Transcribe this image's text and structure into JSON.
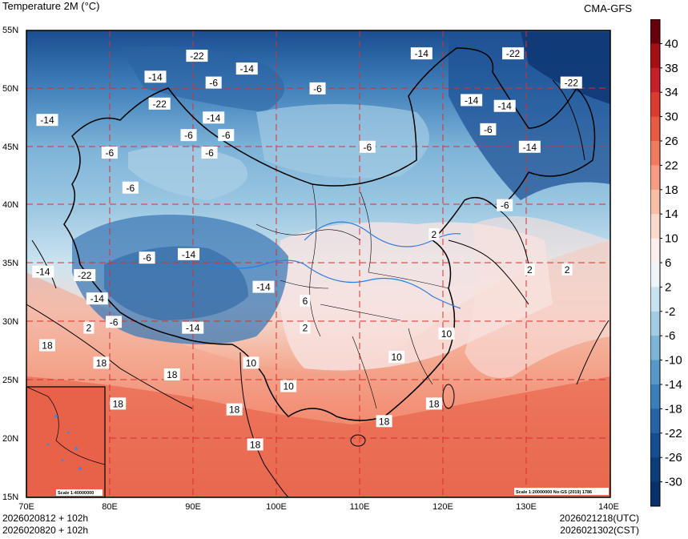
{
  "header": {
    "title": "Temperature  2M (°C)",
    "model": "CMA-GFS"
  },
  "footer": {
    "init_utc": "2026020812 + 102h",
    "init_cst": "2026020820 + 102h",
    "valid_utc": "2026021218(UTC)",
    "valid_cst": "2026021302(CST)"
  },
  "map": {
    "lat_labels": [
      "55N",
      "50N",
      "45N",
      "40N",
      "35N",
      "30N",
      "25N",
      "20N",
      "15N"
    ],
    "lon_labels": [
      "70E",
      "80E",
      "90E",
      "100E",
      "110E",
      "120E",
      "130E",
      "140E"
    ],
    "inset_scale": "Scale 1:40000000",
    "main_scale": "Scale 1:20000000 No:GS (2019) 1786",
    "contour_labels": [
      {
        "text": "-22",
        "lon": 90.5,
        "lat": 52.8
      },
      {
        "text": "-14",
        "lon": 85.5,
        "lat": 51.0
      },
      {
        "text": "-6",
        "lon": 92.5,
        "lat": 50.5
      },
      {
        "text": "-14",
        "lon": 96.5,
        "lat": 51.7
      },
      {
        "text": "-6",
        "lon": 105.0,
        "lat": 50.0
      },
      {
        "text": "-14",
        "lon": 117.5,
        "lat": 53.0
      },
      {
        "text": "-22",
        "lon": 128.5,
        "lat": 53.0
      },
      {
        "text": "-14",
        "lon": 127.5,
        "lat": 48.5
      },
      {
        "text": "-22",
        "lon": 135.5,
        "lat": 50.5
      },
      {
        "text": "-14",
        "lon": 72.5,
        "lat": 47.3
      },
      {
        "text": "-22",
        "lon": 86.0,
        "lat": 48.7
      },
      {
        "text": "-14",
        "lon": 92.5,
        "lat": 47.5
      },
      {
        "text": "-6",
        "lon": 89.5,
        "lat": 46.0
      },
      {
        "text": "-6",
        "lon": 94.0,
        "lat": 46.0
      },
      {
        "text": "-6",
        "lon": 92.0,
        "lat": 44.5
      },
      {
        "text": "-6",
        "lon": 80.0,
        "lat": 44.5
      },
      {
        "text": "-6",
        "lon": 82.5,
        "lat": 41.5
      },
      {
        "text": "-6",
        "lon": 111.0,
        "lat": 45.0
      },
      {
        "text": "-6",
        "lon": 125.5,
        "lat": 46.5
      },
      {
        "text": "-14",
        "lon": 130.5,
        "lat": 45.0
      },
      {
        "text": "-14",
        "lon": 123.5,
        "lat": 49.0
      },
      {
        "text": "-6",
        "lon": 127.5,
        "lat": 40.0
      },
      {
        "text": "-6",
        "lon": 84.5,
        "lat": 35.5
      },
      {
        "text": "-14",
        "lon": 89.5,
        "lat": 35.8
      },
      {
        "text": "-14",
        "lon": 72.0,
        "lat": 34.3
      },
      {
        "text": "-22",
        "lon": 77.0,
        "lat": 34.0
      },
      {
        "text": "-14",
        "lon": 78.5,
        "lat": 32.0
      },
      {
        "text": "-14",
        "lon": 98.5,
        "lat": 33.0
      },
      {
        "text": "-14",
        "lon": 90.0,
        "lat": 29.5
      },
      {
        "text": "-6",
        "lon": 80.5,
        "lat": 30.0
      },
      {
        "text": "6",
        "lon": 103.5,
        "lat": 31.8
      },
      {
        "text": "2",
        "lon": 103.5,
        "lat": 29.5
      },
      {
        "text": "2",
        "lon": 77.5,
        "lat": 29.5
      },
      {
        "text": "2",
        "lon": 119.0,
        "lat": 37.5
      },
      {
        "text": "2",
        "lon": 130.5,
        "lat": 34.5
      },
      {
        "text": "2",
        "lon": 135.0,
        "lat": 34.5
      },
      {
        "text": "10",
        "lon": 120.5,
        "lat": 29.0
      },
      {
        "text": "10",
        "lon": 114.5,
        "lat": 27.0
      },
      {
        "text": "10",
        "lon": 101.5,
        "lat": 24.5
      },
      {
        "text": "10",
        "lon": 97.0,
        "lat": 26.5
      },
      {
        "text": "18",
        "lon": 72.5,
        "lat": 28.0
      },
      {
        "text": "18",
        "lon": 79.0,
        "lat": 26.5
      },
      {
        "text": "18",
        "lon": 87.5,
        "lat": 25.5
      },
      {
        "text": "18",
        "lon": 81.0,
        "lat": 23.0
      },
      {
        "text": "18",
        "lon": 95.0,
        "lat": 22.5
      },
      {
        "text": "18",
        "lon": 97.5,
        "lat": 19.5
      },
      {
        "text": "18",
        "lon": 113.0,
        "lat": 21.5
      },
      {
        "text": "18",
        "lon": 119.0,
        "lat": 23.0
      }
    ]
  },
  "colorbar": {
    "labels": [
      "40",
      "38",
      "34",
      "30",
      "26",
      "22",
      "18",
      "14",
      "10",
      "6",
      "2",
      "-2",
      "-6",
      "-10",
      "-14",
      "-18",
      "-22",
      "-26",
      "-30"
    ],
    "colors": [
      "#67000d",
      "#a50f15",
      "#c8202a",
      "#dc3b30",
      "#e85a43",
      "#f07b5f",
      "#f59c82",
      "#f8bea6",
      "#fad9cb",
      "#fcefec",
      "#edf5fb",
      "#c9e2f0",
      "#a3cce4",
      "#7cb4d8",
      "#5898c9",
      "#3c7eba",
      "#2763a6",
      "#154d90",
      "#0b3d79",
      "#08306b"
    ]
  }
}
